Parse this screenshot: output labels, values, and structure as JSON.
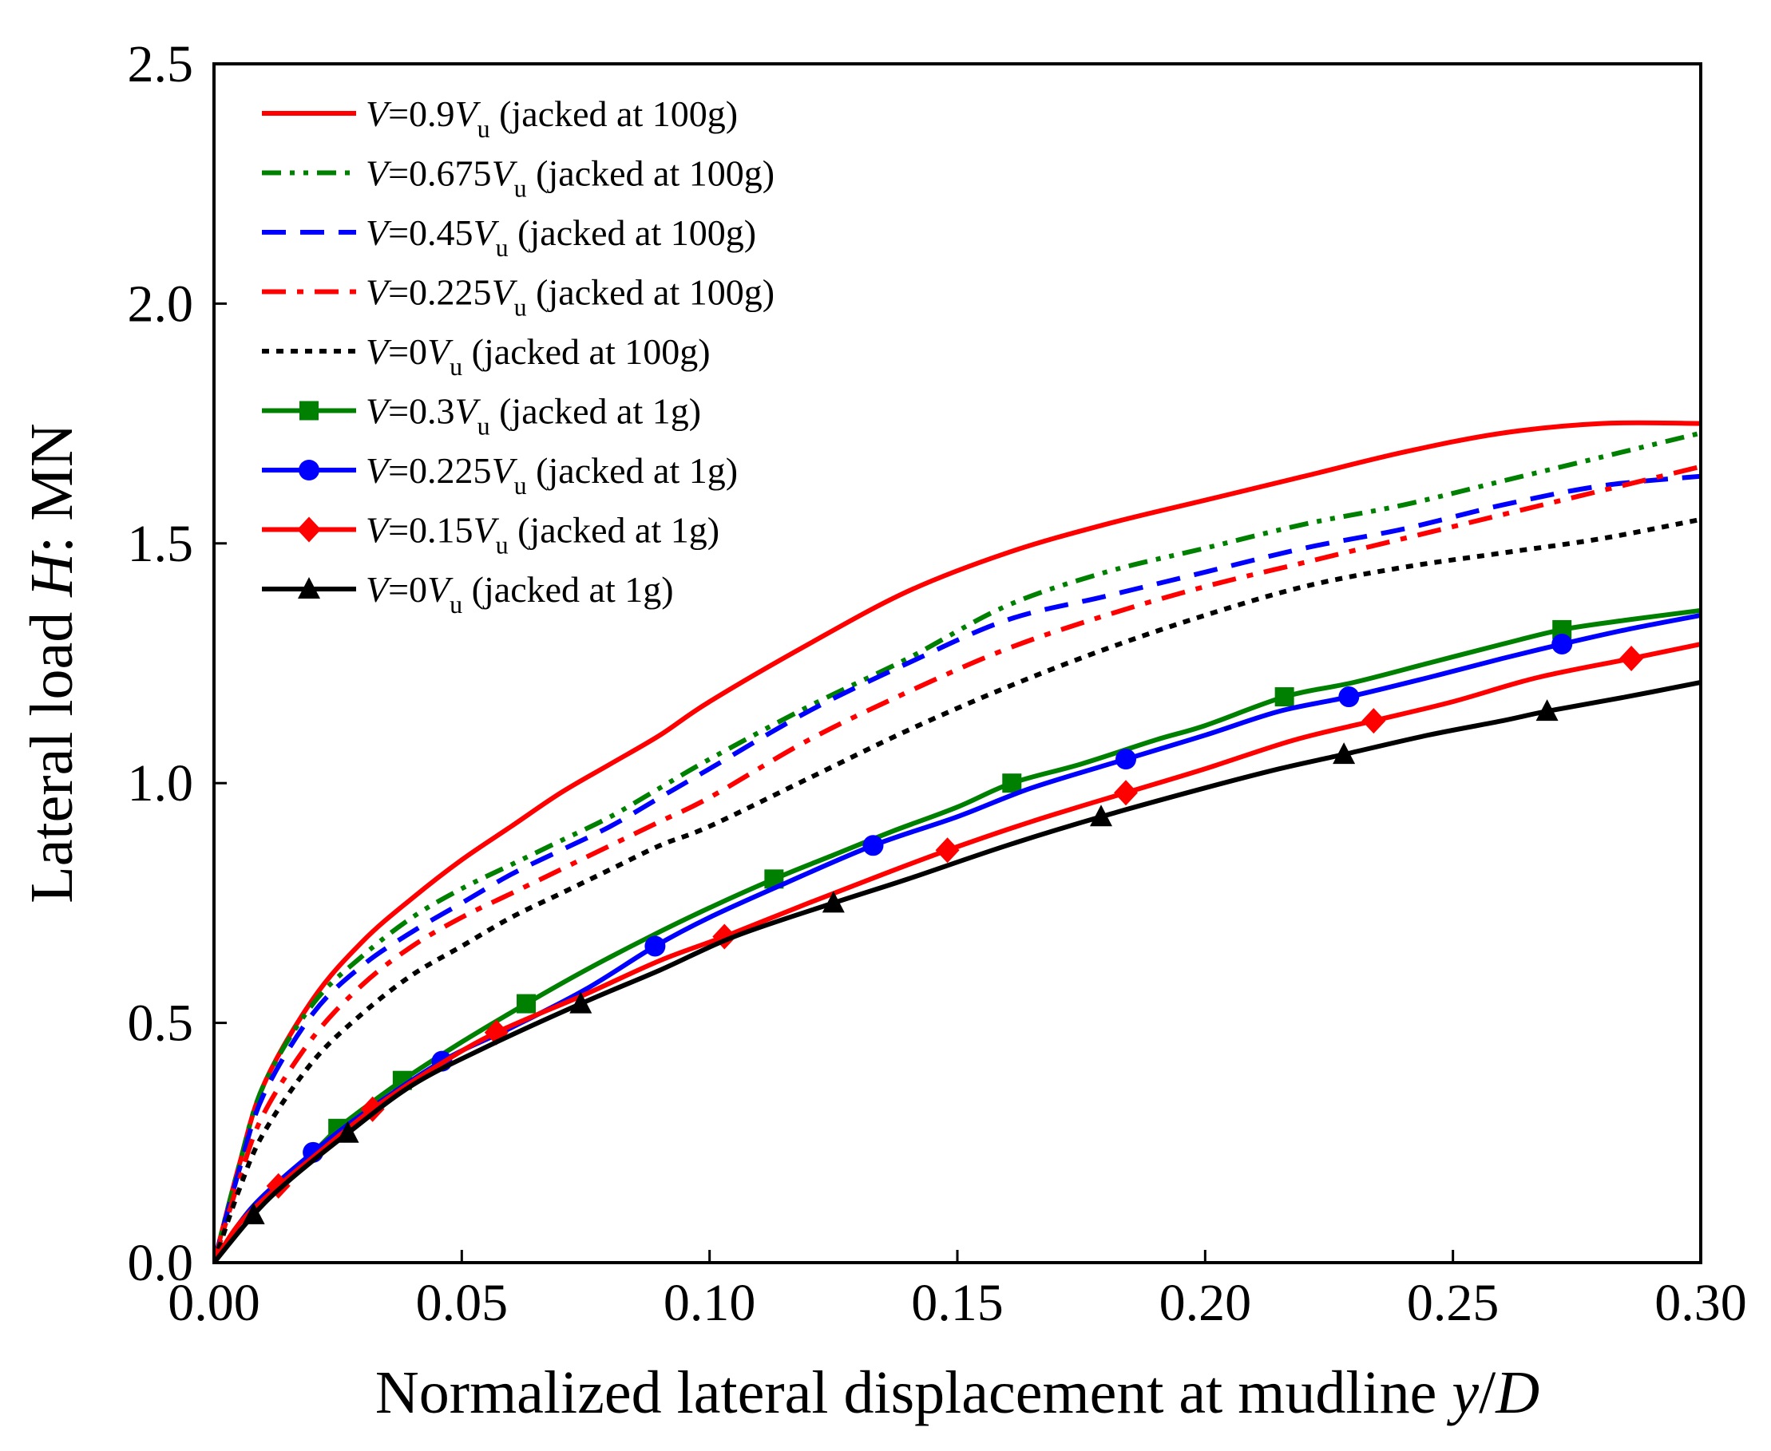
{
  "chart_data": {
    "type": "line",
    "xlabel": {
      "prefix": "Normalized lateral displacement at mudline ",
      "var": "y",
      "sep": "/",
      "var2": "D"
    },
    "ylabel": {
      "prefix": "Lateral load ",
      "var": "H",
      "suffix": ": MN"
    },
    "xlim": [
      0,
      0.3
    ],
    "ylim": [
      0,
      2.5
    ],
    "xticks": [
      "0.00",
      "0.05",
      "0.10",
      "0.15",
      "0.20",
      "0.25",
      "0.30"
    ],
    "yticks": [
      "0.0",
      "0.5",
      "1.0",
      "1.5",
      "2.0",
      "2.5"
    ],
    "grid": false,
    "legend_position": "top-left",
    "series": [
      {
        "name": "V=0.9Vu (jacked at 100g)",
        "label": {
          "coef": "=0.9",
          "rest": " (jacked at 100g)"
        },
        "color": "#ff0000",
        "style": "solid",
        "marker": "none",
        "x": [
          0,
          0.005,
          0.01,
          0.02,
          0.03,
          0.04,
          0.05,
          0.06,
          0.07,
          0.08,
          0.09,
          0.1,
          0.12,
          0.14,
          0.16,
          0.18,
          0.2,
          0.22,
          0.24,
          0.26,
          0.28,
          0.3
        ],
        "y": [
          0,
          0.2,
          0.37,
          0.55,
          0.67,
          0.76,
          0.84,
          0.91,
          0.98,
          1.04,
          1.1,
          1.17,
          1.29,
          1.4,
          1.48,
          1.54,
          1.59,
          1.64,
          1.69,
          1.73,
          1.75,
          1.75
        ]
      },
      {
        "name": "V=0.675Vu (jacked at 100g)",
        "label": {
          "coef": "=0.675",
          "rest": " (jacked at 100g)"
        },
        "color": "#008000",
        "style": "dash-dot-dot",
        "marker": "none",
        "x": [
          0,
          0.005,
          0.01,
          0.02,
          0.03,
          0.04,
          0.05,
          0.06,
          0.07,
          0.08,
          0.09,
          0.1,
          0.12,
          0.14,
          0.16,
          0.18,
          0.2,
          0.22,
          0.24,
          0.26,
          0.28,
          0.3
        ],
        "y": [
          0,
          0.2,
          0.37,
          0.54,
          0.64,
          0.72,
          0.78,
          0.83,
          0.88,
          0.93,
          0.99,
          1.05,
          1.16,
          1.26,
          1.37,
          1.44,
          1.49,
          1.54,
          1.58,
          1.63,
          1.68,
          1.73
        ]
      },
      {
        "name": "V=0.45Vu (jacked at 100g)",
        "label": {
          "coef": "=0.45",
          "rest": " (jacked at 100g)"
        },
        "color": "#0000ff",
        "style": "dash",
        "marker": "none",
        "x": [
          0,
          0.005,
          0.01,
          0.02,
          0.03,
          0.04,
          0.05,
          0.06,
          0.07,
          0.08,
          0.09,
          0.1,
          0.12,
          0.14,
          0.16,
          0.18,
          0.2,
          0.22,
          0.24,
          0.26,
          0.28,
          0.3
        ],
        "y": [
          0,
          0.19,
          0.35,
          0.52,
          0.62,
          0.69,
          0.75,
          0.81,
          0.86,
          0.91,
          0.97,
          1.03,
          1.15,
          1.25,
          1.34,
          1.39,
          1.44,
          1.49,
          1.53,
          1.58,
          1.62,
          1.64
        ]
      },
      {
        "name": "V=0.225Vu (jacked at 100g)",
        "label": {
          "coef": "=0.225",
          "rest": " (jacked at 100g)"
        },
        "color": "#ff0000",
        "style": "dash-dot",
        "marker": "none",
        "x": [
          0,
          0.005,
          0.01,
          0.02,
          0.03,
          0.04,
          0.05,
          0.06,
          0.07,
          0.08,
          0.09,
          0.1,
          0.12,
          0.14,
          0.16,
          0.18,
          0.2,
          0.22,
          0.24,
          0.26,
          0.28,
          0.3
        ],
        "y": [
          0,
          0.17,
          0.31,
          0.47,
          0.58,
          0.66,
          0.72,
          0.77,
          0.82,
          0.87,
          0.92,
          0.97,
          1.09,
          1.19,
          1.28,
          1.35,
          1.41,
          1.46,
          1.51,
          1.56,
          1.61,
          1.66
        ]
      },
      {
        "name": "V=0Vu (jacked at 100g)",
        "label": {
          "coef": "=0",
          "rest": " (jacked at 100g)"
        },
        "color": "#000000",
        "style": "dot",
        "marker": "none",
        "x": [
          0,
          0.005,
          0.01,
          0.02,
          0.03,
          0.04,
          0.05,
          0.06,
          0.07,
          0.08,
          0.09,
          0.1,
          0.12,
          0.14,
          0.16,
          0.18,
          0.2,
          0.22,
          0.24,
          0.26,
          0.28,
          0.3
        ],
        "y": [
          0,
          0.15,
          0.27,
          0.42,
          0.52,
          0.6,
          0.66,
          0.72,
          0.77,
          0.82,
          0.87,
          0.91,
          1.01,
          1.11,
          1.2,
          1.28,
          1.35,
          1.41,
          1.45,
          1.48,
          1.51,
          1.55
        ]
      },
      {
        "name": "V=0.3Vu (jacked at 1g)",
        "label": {
          "coef": "=0.3",
          "rest": " (jacked at 1g)"
        },
        "color": "#008000",
        "style": "solid",
        "marker": "square",
        "x": [
          0,
          0.005,
          0.01,
          0.02,
          0.025,
          0.03,
          0.038,
          0.05,
          0.063,
          0.075,
          0.088,
          0.1,
          0.113,
          0.125,
          0.137,
          0.15,
          0.161,
          0.175,
          0.19,
          0.2,
          0.216,
          0.23,
          0.245,
          0.26,
          0.272,
          0.285,
          0.3
        ],
        "y": [
          0,
          0.08,
          0.14,
          0.23,
          0.28,
          0.32,
          0.38,
          0.46,
          0.54,
          0.61,
          0.68,
          0.74,
          0.8,
          0.85,
          0.9,
          0.95,
          1.0,
          1.04,
          1.09,
          1.12,
          1.18,
          1.21,
          1.25,
          1.29,
          1.32,
          1.34,
          1.36
        ],
        "marker_x": [
          0.025,
          0.038,
          0.063,
          0.113,
          0.161,
          0.216,
          0.272
        ]
      },
      {
        "name": "V=0.225Vu (jacked at 1g)",
        "label": {
          "coef": "=0.225",
          "rest": " (jacked at 1g)"
        },
        "color": "#0000ff",
        "style": "solid",
        "marker": "circle",
        "x": [
          0,
          0.005,
          0.01,
          0.02,
          0.03,
          0.046,
          0.06,
          0.075,
          0.089,
          0.1,
          0.115,
          0.133,
          0.15,
          0.165,
          0.184,
          0.2,
          0.215,
          0.229,
          0.245,
          0.26,
          0.272,
          0.285,
          0.3
        ],
        "y": [
          0,
          0.08,
          0.14,
          0.23,
          0.31,
          0.42,
          0.49,
          0.57,
          0.66,
          0.72,
          0.79,
          0.87,
          0.93,
          0.99,
          1.05,
          1.1,
          1.15,
          1.18,
          1.22,
          1.26,
          1.29,
          1.32,
          1.35
        ],
        "marker_x": [
          0.02,
          0.046,
          0.089,
          0.133,
          0.184,
          0.229,
          0.272
        ]
      },
      {
        "name": "V=0.15Vu (jacked at 1g)",
        "label": {
          "coef": "=0.15",
          "rest": " (jacked at 1g)"
        },
        "color": "#ff0000",
        "style": "solid",
        "marker": "diamond",
        "x": [
          0,
          0.005,
          0.013,
          0.02,
          0.032,
          0.045,
          0.057,
          0.075,
          0.09,
          0.103,
          0.12,
          0.135,
          0.148,
          0.165,
          0.184,
          0.2,
          0.218,
          0.234,
          0.25,
          0.267,
          0.286,
          0.3
        ],
        "y": [
          0,
          0.08,
          0.16,
          0.22,
          0.32,
          0.41,
          0.48,
          0.56,
          0.63,
          0.68,
          0.75,
          0.81,
          0.86,
          0.92,
          0.98,
          1.03,
          1.09,
          1.13,
          1.17,
          1.22,
          1.26,
          1.29
        ],
        "marker_x": [
          0.013,
          0.032,
          0.057,
          0.103,
          0.148,
          0.184,
          0.234,
          0.286
        ]
      },
      {
        "name": "V=0Vu (jacked at  1g)",
        "label": {
          "coef": "=0",
          "rest": " (jacked at  1g)"
        },
        "color": "#000000",
        "style": "solid",
        "marker": "triangle",
        "x": [
          0,
          0.008,
          0.015,
          0.027,
          0.04,
          0.055,
          0.074,
          0.09,
          0.105,
          0.125,
          0.14,
          0.16,
          0.179,
          0.2,
          0.215,
          0.228,
          0.245,
          0.26,
          0.269,
          0.285,
          0.3
        ],
        "y": [
          0,
          0.1,
          0.17,
          0.27,
          0.37,
          0.45,
          0.54,
          0.61,
          0.68,
          0.75,
          0.8,
          0.87,
          0.93,
          0.99,
          1.03,
          1.06,
          1.1,
          1.13,
          1.15,
          1.18,
          1.21
        ],
        "marker_x": [
          0.008,
          0.027,
          0.074,
          0.125,
          0.179,
          0.228,
          0.269
        ]
      }
    ]
  }
}
